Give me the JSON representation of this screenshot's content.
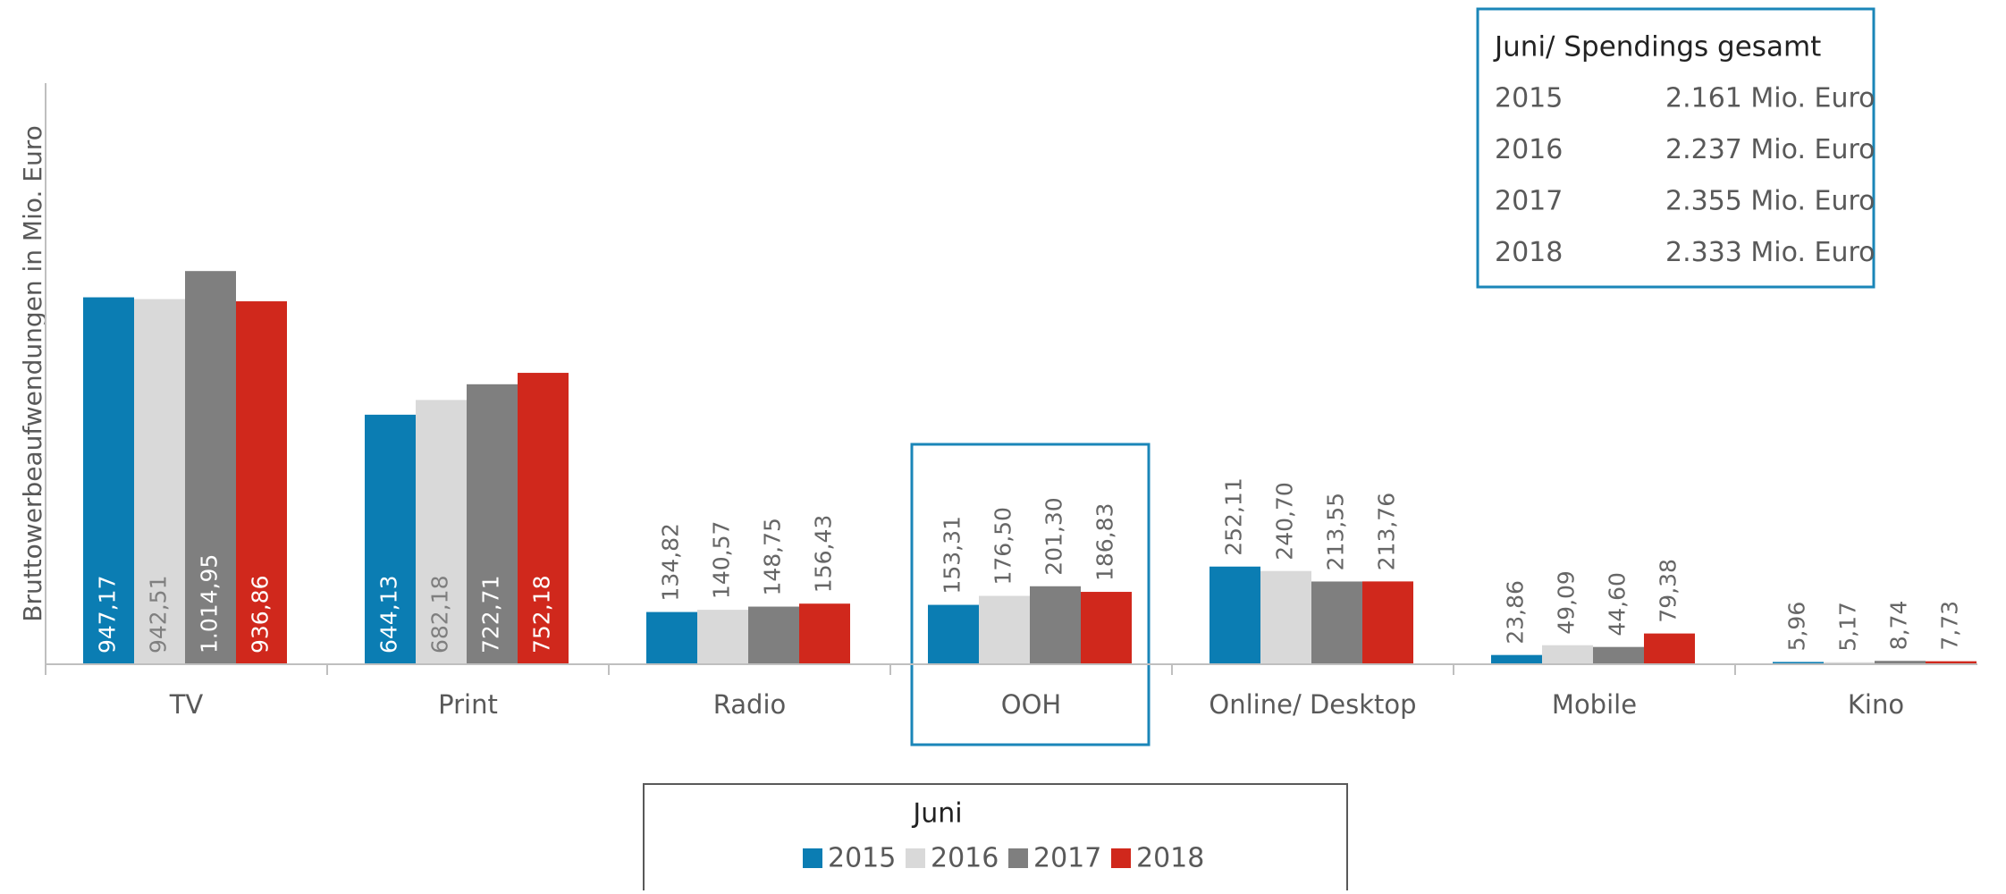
{
  "chart_data": {
    "type": "bar",
    "y_label": "Bruttowerbeaufwendungen in Mio. Euro",
    "categories": [
      "TV",
      "Print",
      "Radio",
      "OOH",
      "Online/ Desktop",
      "Mobile",
      "Kino"
    ],
    "series": [
      {
        "name": "2015",
        "color": "#0b7db3",
        "values": [
          947.17,
          644.13,
          134.82,
          153.31,
          252.11,
          23.86,
          5.96
        ],
        "value_labels": [
          "947,17",
          "644,13",
          "134,82",
          "153,31",
          "252,11",
          "23,86",
          "5,96"
        ]
      },
      {
        "name": "2016",
        "color": "#d9d9d9",
        "values": [
          942.51,
          682.18,
          140.57,
          176.5,
          240.7,
          49.09,
          5.17
        ],
        "value_labels": [
          "942,51",
          "682,18",
          "140,57",
          "176,50",
          "240,70",
          "49,09",
          "5,17"
        ]
      },
      {
        "name": "2017",
        "color": "#7f7f7f",
        "values": [
          1014.95,
          722.71,
          148.75,
          201.3,
          213.55,
          44.6,
          8.74
        ],
        "value_labels": [
          "1.014,95",
          "722,71",
          "148,75",
          "201,30",
          "213,55",
          "44,60",
          "8,74"
        ]
      },
      {
        "name": "2018",
        "color": "#d0281c",
        "values": [
          936.86,
          752.18,
          156.43,
          186.83,
          213.76,
          79.38,
          7.73
        ],
        "value_labels": [
          "936,86",
          "752,18",
          "156,43",
          "186,83",
          "213,76",
          "79,38",
          "7,73"
        ]
      }
    ],
    "ylim": [
      0,
      1500
    ],
    "legend_title": "Juni",
    "annotation": {
      "title": "Juni/ Spendings gesamt",
      "rows": [
        [
          "2015",
          "2.161 Mio. Euro"
        ],
        [
          "2016",
          "2.237 Mio. Euro"
        ],
        [
          "2017",
          "2.355 Mio. Euro"
        ],
        [
          "2018",
          "2.333 Mio. Euro"
        ]
      ]
    }
  }
}
